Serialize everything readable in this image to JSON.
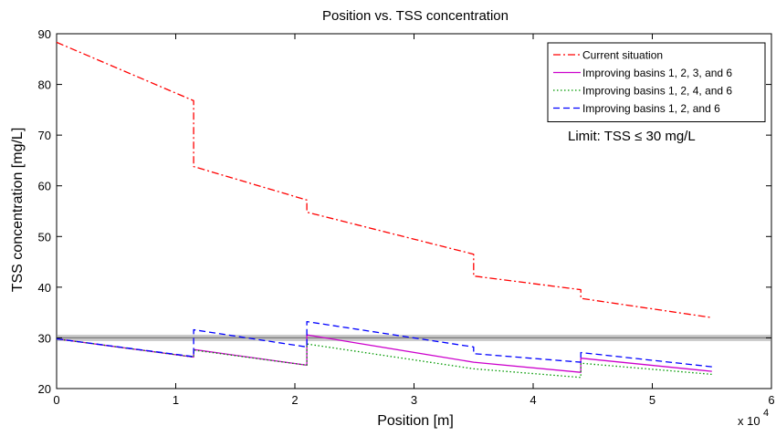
{
  "chart_data": {
    "type": "line",
    "title": "Position vs. TSS concentration",
    "xlabel": "Position [m]",
    "ylabel": "TSS concentration [mg/L]",
    "x_multiplier_label": "x 10",
    "x_multiplier_exponent": "4",
    "xlim": [
      0,
      6
    ],
    "ylim": [
      20,
      90
    ],
    "xticks": [
      0,
      1,
      2,
      3,
      4,
      5,
      6
    ],
    "yticks": [
      20,
      30,
      40,
      50,
      60,
      70,
      80,
      90
    ],
    "grid": false,
    "legend_position": "top-right",
    "annotation": "Limit: TSS ≤ 30 mg/L",
    "limit_value": 30,
    "limit_color": "#a0a0a0",
    "series": [
      {
        "name": "Current situation",
        "color": "#ff0000",
        "style": "dashdot",
        "points": [
          [
            0,
            88.3
          ],
          [
            1.15,
            76.8
          ],
          [
            1.15,
            63.8
          ],
          [
            2.1,
            57.2
          ],
          [
            2.1,
            54.8
          ],
          [
            3.5,
            46.5
          ],
          [
            3.5,
            42.2
          ],
          [
            4.4,
            39.5
          ],
          [
            4.4,
            37.8
          ],
          [
            5.5,
            34
          ]
        ]
      },
      {
        "name": "Improving basins 1, 2, 3, and 6",
        "color": "#cc00cc",
        "style": "solid",
        "points": [
          [
            0,
            29.8
          ],
          [
            1.15,
            26.2
          ],
          [
            1.15,
            27.7
          ],
          [
            2.1,
            24.6
          ],
          [
            2.1,
            30.6
          ],
          [
            3.5,
            25.2
          ],
          [
            3.5,
            25.2
          ],
          [
            4.4,
            23.2
          ],
          [
            4.4,
            26.0
          ],
          [
            5.5,
            23.4
          ]
        ]
      },
      {
        "name": "Improving basins 1, 2, 4, and 6",
        "color": "#009900",
        "style": "dotted",
        "points": [
          [
            0,
            29.8
          ],
          [
            1.15,
            26.2
          ],
          [
            1.15,
            27.6
          ],
          [
            2.1,
            24.6
          ],
          [
            2.1,
            28.8
          ],
          [
            3.5,
            23.9
          ],
          [
            4.4,
            22.2
          ],
          [
            4.4,
            25.0
          ],
          [
            5.5,
            22.8
          ]
        ]
      },
      {
        "name": "Improving basins 1, 2, and 6",
        "color": "#0000ff",
        "style": "dashed",
        "points": [
          [
            0,
            29.8
          ],
          [
            1.15,
            26.3
          ],
          [
            1.15,
            31.6
          ],
          [
            2.1,
            28.2
          ],
          [
            2.1,
            33.2
          ],
          [
            3.5,
            28.2
          ],
          [
            3.5,
            26.9
          ],
          [
            4.4,
            25.2
          ],
          [
            4.4,
            27.1
          ],
          [
            5.5,
            24.3
          ]
        ]
      }
    ]
  }
}
